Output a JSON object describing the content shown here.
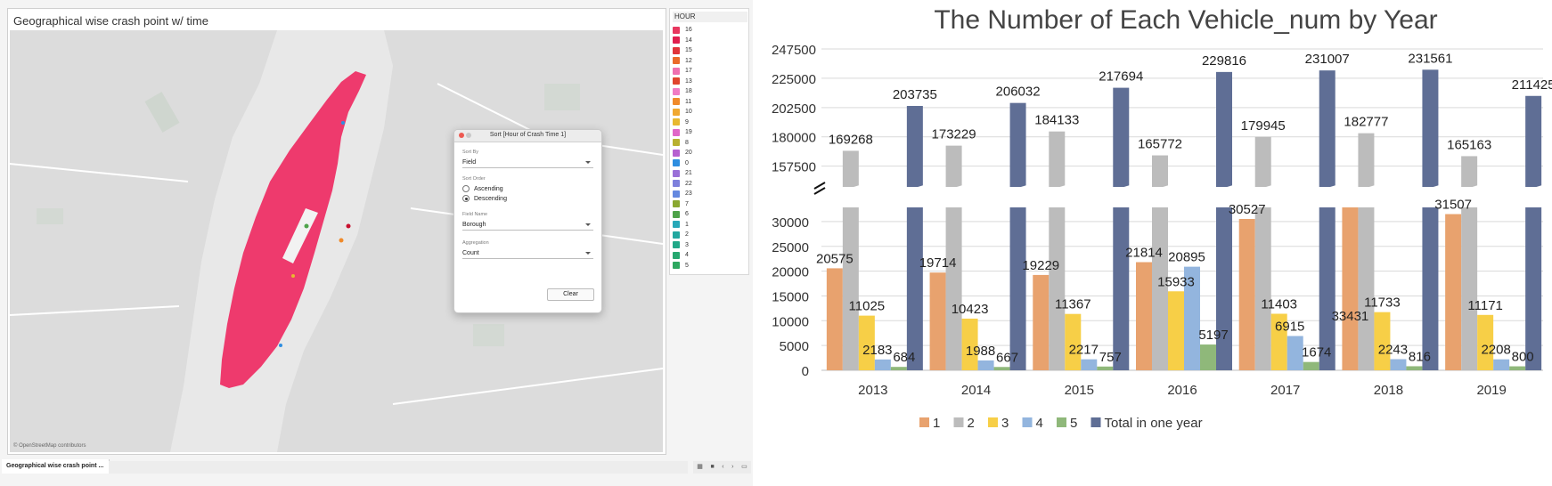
{
  "left_app": {
    "sheet_title": "Geographical wise crash point w/ time",
    "attribution": "© OpenStreetMap contributors",
    "legend": {
      "title": "HOUR",
      "items": [
        {
          "label": "16",
          "color": "#e8375f"
        },
        {
          "label": "14",
          "color": "#e01f4e"
        },
        {
          "label": "15",
          "color": "#e0343b"
        },
        {
          "label": "12",
          "color": "#ea6a2a"
        },
        {
          "label": "17",
          "color": "#ef6fb0"
        },
        {
          "label": "13",
          "color": "#e0442c"
        },
        {
          "label": "18",
          "color": "#f07cc4"
        },
        {
          "label": "11",
          "color": "#f08a2a"
        },
        {
          "label": "10",
          "color": "#f0a830"
        },
        {
          "label": "9",
          "color": "#e8b830"
        },
        {
          "label": "19",
          "color": "#e066c8"
        },
        {
          "label": "8",
          "color": "#b8b030"
        },
        {
          "label": "20",
          "color": "#b660d0"
        },
        {
          "label": "0",
          "color": "#2e8ee0"
        },
        {
          "label": "21",
          "color": "#9a70d8"
        },
        {
          "label": "22",
          "color": "#7e80dc"
        },
        {
          "label": "23",
          "color": "#6488e0"
        },
        {
          "label": "7",
          "color": "#8aa830"
        },
        {
          "label": "6",
          "color": "#4ea34a"
        },
        {
          "label": "1",
          "color": "#28a8b8"
        },
        {
          "label": "2",
          "color": "#22a8a0"
        },
        {
          "label": "3",
          "color": "#20a888"
        },
        {
          "label": "4",
          "color": "#26a870"
        },
        {
          "label": "5",
          "color": "#2ea860"
        }
      ]
    },
    "sort_dialog": {
      "title": "Sort [Hour of Crash Time 1]",
      "sort_by_label": "Sort By",
      "sort_by_value": "Field",
      "sort_order_label": "Sort Order",
      "ascending_label": "Ascending",
      "descending_label": "Descending",
      "selected_order": "Descending",
      "field_name_label": "Field Name",
      "field_name_value": "Borough",
      "aggregation_label": "Aggregation",
      "aggregation_value": "Count",
      "clear_label": "Clear"
    },
    "sheet_tab": "Geographical wise crash point ..."
  },
  "chart_data": {
    "type": "bar",
    "title": "The Number of Each Vehicle_num by Year",
    "categories": [
      "2013",
      "2014",
      "2015",
      "2016",
      "2017",
      "2018",
      "2019"
    ],
    "series": [
      {
        "name": "1",
        "color": "#e8a26e",
        "values": [
          20575,
          19714,
          19229,
          21814,
          30527,
          33431,
          31507
        ]
      },
      {
        "name": "2",
        "color": "#bcbcbc",
        "values": [
          169268,
          173229,
          184133,
          165772,
          179945,
          182777,
          165163
        ]
      },
      {
        "name": "3",
        "color": "#f7cf47",
        "values": [
          11025,
          10423,
          11367,
          15933,
          11403,
          11733,
          11171
        ]
      },
      {
        "name": "4",
        "color": "#93b5de",
        "values": [
          2183,
          1988,
          2217,
          20895,
          6915,
          2243,
          2208
        ]
      },
      {
        "name": "5",
        "color": "#8fb87a",
        "values": [
          684,
          667,
          757,
          5197,
          1674,
          816,
          800
        ]
      },
      {
        "name": "Total in one year",
        "color": "#5f6e95",
        "values": [
          203735,
          206032,
          217694,
          229816,
          231007,
          231561,
          211425
        ]
      }
    ],
    "lower_ticks": [
      "0",
      "5000",
      "10000",
      "15000",
      "20000",
      "25000",
      "30000"
    ],
    "upper_ticks": [
      "157500",
      "180000",
      "202500",
      "225000",
      "247500"
    ],
    "lower_range": [
      0,
      32500
    ],
    "upper_range": [
      147000,
      247500
    ],
    "axis_break": "between 32500 and 147000",
    "legend_position": "bottom",
    "grid": true
  }
}
